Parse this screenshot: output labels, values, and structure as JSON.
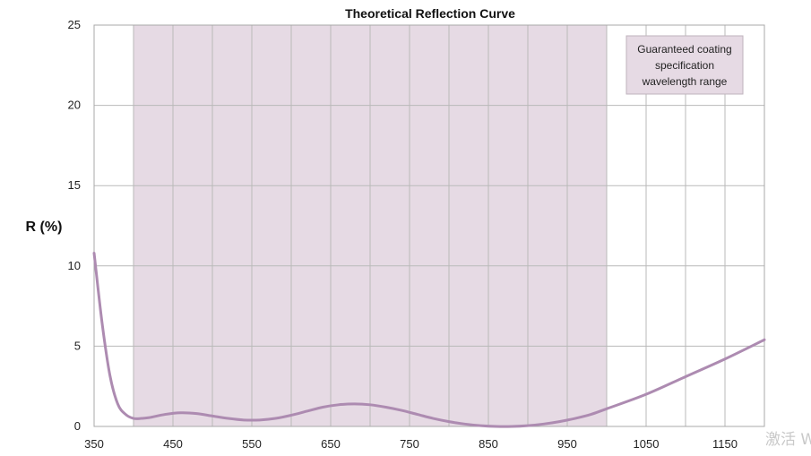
{
  "chart_data": {
    "type": "line",
    "title": "Theoretical Reflection Curve",
    "xlabel": "",
    "ylabel": "R (%)",
    "xlim": [
      350,
      1200
    ],
    "ylim": [
      0,
      25
    ],
    "x_ticks": [
      350,
      450,
      550,
      650,
      750,
      850,
      950,
      1050,
      1150
    ],
    "y_ticks": [
      0,
      5,
      10,
      15,
      20,
      25
    ],
    "grid": true,
    "vertical_gridlines_every": 50,
    "shaded_range": {
      "x": [
        400,
        1000
      ],
      "label": "Guaranteed coating specification wavelength range",
      "color": "#e6dae4"
    },
    "legend_lines": [
      "Guaranteed coating",
      "specification",
      "wavelength range"
    ],
    "legend_placement": "top-right",
    "series": [
      {
        "color": "#ad8bb1",
        "x": [
          350,
          360,
          370,
          380,
          390,
          400,
          410,
          420,
          440,
          460,
          480,
          500,
          520,
          540,
          560,
          580,
          600,
          620,
          640,
          660,
          680,
          700,
          720,
          740,
          760,
          780,
          800,
          820,
          840,
          860,
          880,
          900,
          920,
          940,
          960,
          980,
          1000,
          1050,
          1100,
          1150,
          1200
        ],
        "y": [
          10.8,
          6.5,
          3.2,
          1.4,
          0.75,
          0.5,
          0.5,
          0.55,
          0.75,
          0.85,
          0.8,
          0.65,
          0.5,
          0.4,
          0.4,
          0.5,
          0.7,
          0.95,
          1.2,
          1.35,
          1.4,
          1.35,
          1.2,
          1.0,
          0.75,
          0.5,
          0.3,
          0.15,
          0.05,
          0.0,
          0.0,
          0.05,
          0.15,
          0.3,
          0.5,
          0.75,
          1.1,
          2.0,
          3.1,
          4.2,
          5.4
        ]
      }
    ]
  },
  "watermark": {
    "text": "激活 W",
    "color": "#c9c9c9"
  }
}
